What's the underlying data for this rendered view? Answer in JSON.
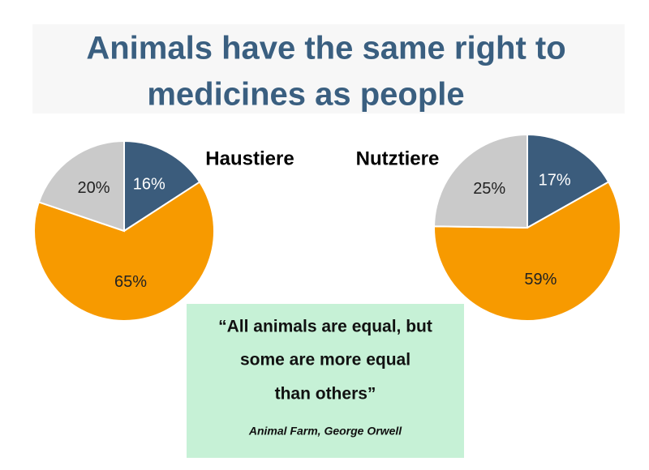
{
  "slide": {
    "title_lines": [
      "Animals have the same right to",
      "medicines as people"
    ],
    "quote_lines": [
      "“All animals are equal, but",
      "some are more equal",
      "than others”"
    ],
    "quote_source": "Animal Farm, George Orwell"
  },
  "chart_data": [
    {
      "type": "pie",
      "title": "Haustiere",
      "values": [
        16,
        65,
        20
      ],
      "value_labels": [
        "16%",
        "65%",
        "20%"
      ],
      "colors": [
        "#3b5c7c",
        "#f79a00",
        "#cacaca"
      ]
    },
    {
      "type": "pie",
      "title": "Nutztiere",
      "values": [
        17,
        59,
        25
      ],
      "value_labels": [
        "17%",
        "59%",
        "25%"
      ],
      "colors": [
        "#3b5c7c",
        "#f79a00",
        "#cacaca"
      ]
    }
  ]
}
